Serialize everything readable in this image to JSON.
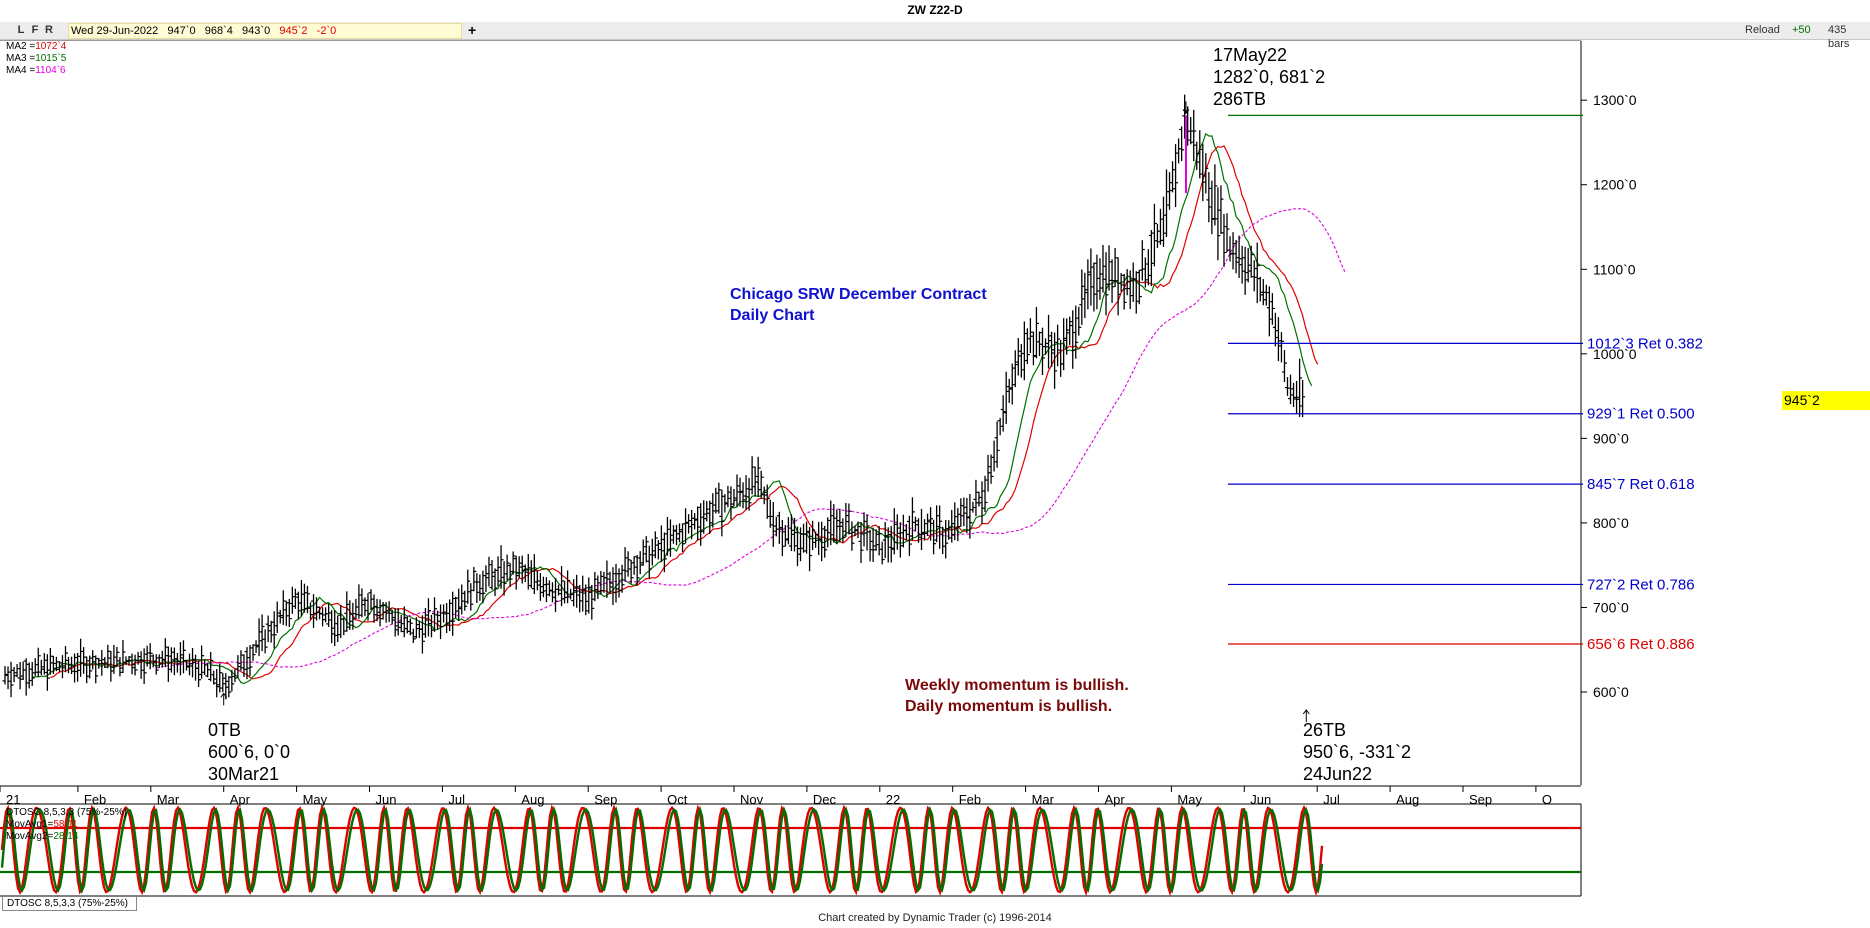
{
  "window_title": "ZW Z22-D",
  "toolbar": {
    "buttons": [
      "L",
      "F",
      "R"
    ],
    "info": {
      "date": "Wed 29-Jun-2022",
      "open": "947`0",
      "high": "968`4",
      "low": "943`0",
      "close": "945`2",
      "change": "-2`0"
    },
    "add_label": "+",
    "reload_label": "Reload",
    "plus_count": "+50",
    "bars_label": "435 bars"
  },
  "ma_legend": [
    {
      "label": "MA2 =",
      "value": "1072`4",
      "color": "#e00000"
    },
    {
      "label": "MA3 =",
      "value": "1015`5",
      "color": "#007000"
    },
    {
      "label": "MA4 =",
      "value": "1104`6",
      "color": "#e000e0"
    }
  ],
  "chart_data": [
    {
      "type": "bar",
      "subtype": "ohlc",
      "title": "Chicago SRW December Contract\nDaily Chart",
      "title_lines": [
        "Chicago SRW December Contract",
        "Daily Chart"
      ],
      "x_labels": [
        "21",
        "Feb",
        "Mar",
        "Apr",
        "May",
        "Jun",
        "Jul",
        "Aug",
        "Sep",
        "Oct",
        "Nov",
        "Dec",
        "22",
        "Feb",
        "Mar",
        "Apr",
        "May",
        "Jun",
        "Jul",
        "Aug",
        "Sep",
        "O"
      ],
      "y_ticks": [
        "600`0",
        "700`0",
        "800`0",
        "900`0",
        "1000`0",
        "1100`0",
        "1200`0",
        "1300`0"
      ],
      "y_values": [
        600,
        700,
        800,
        900,
        1000,
        1100,
        1200,
        1300
      ],
      "ylim": [
        490,
        1370
      ],
      "last_price": {
        "label": "945`2",
        "value": 945.25,
        "color": "#ffff00"
      },
      "trend_points": [
        {
          "month_pos": 0.0,
          "price": 620
        },
        {
          "month_pos": 0.6,
          "price": 630
        },
        {
          "month_pos": 1.3,
          "price": 635
        },
        {
          "month_pos": 2.2,
          "price": 640
        },
        {
          "month_pos": 2.8,
          "price": 625
        },
        {
          "month_pos": 3.0,
          "price": 605
        },
        {
          "month_pos": 3.5,
          "price": 660
        },
        {
          "month_pos": 4.0,
          "price": 710
        },
        {
          "month_pos": 4.6,
          "price": 680
        },
        {
          "month_pos": 5.0,
          "price": 710
        },
        {
          "month_pos": 5.6,
          "price": 670
        },
        {
          "month_pos": 6.0,
          "price": 690
        },
        {
          "month_pos": 6.5,
          "price": 730
        },
        {
          "month_pos": 7.0,
          "price": 745
        },
        {
          "month_pos": 7.6,
          "price": 720
        },
        {
          "month_pos": 8.0,
          "price": 710
        },
        {
          "month_pos": 8.6,
          "price": 750
        },
        {
          "month_pos": 9.0,
          "price": 770
        },
        {
          "month_pos": 9.6,
          "price": 810
        },
        {
          "month_pos": 10.0,
          "price": 830
        },
        {
          "month_pos": 10.3,
          "price": 850
        },
        {
          "month_pos": 10.6,
          "price": 795
        },
        {
          "month_pos": 11.0,
          "price": 775
        },
        {
          "month_pos": 11.5,
          "price": 800
        },
        {
          "month_pos": 12.0,
          "price": 770
        },
        {
          "month_pos": 12.5,
          "price": 800
        },
        {
          "month_pos": 12.9,
          "price": 785
        },
        {
          "month_pos": 13.4,
          "price": 830
        },
        {
          "month_pos": 13.7,
          "price": 930
        },
        {
          "month_pos": 14.0,
          "price": 1020
        },
        {
          "month_pos": 14.5,
          "price": 1000
        },
        {
          "month_pos": 15.0,
          "price": 1100
        },
        {
          "month_pos": 15.5,
          "price": 1080
        },
        {
          "month_pos": 15.9,
          "price": 1150
        },
        {
          "month_pos": 16.2,
          "price": 1282
        },
        {
          "month_pos": 16.5,
          "price": 1200
        },
        {
          "month_pos": 16.8,
          "price": 1130
        },
        {
          "month_pos": 17.1,
          "price": 1100
        },
        {
          "month_pos": 17.4,
          "price": 1050
        },
        {
          "month_pos": 17.6,
          "price": 960
        },
        {
          "month_pos": 17.8,
          "price": 945
        }
      ],
      "series": [
        {
          "name": "MA2",
          "color": "#e00000"
        },
        {
          "name": "MA3",
          "color": "#007000"
        },
        {
          "name": "MA4",
          "color": "#e000e0",
          "dashed": true
        }
      ],
      "retracements": [
        {
          "label": "1012`3 Ret 0.382",
          "value": 1012.375,
          "color": "#0000cc"
        },
        {
          "label": "929`1 Ret 0.500",
          "value": 929.125,
          "color": "#0000cc"
        },
        {
          "label": "845`7 Ret 0.618",
          "value": 845.875,
          "color": "#0000cc"
        },
        {
          "label": "727`2 Ret 0.786",
          "value": 727.25,
          "color": "#0000cc"
        },
        {
          "label": "656`6 Ret 0.886",
          "value": 656.75,
          "color": "#e00000"
        }
      ],
      "high_line": {
        "value": 1282,
        "color": "#007000"
      },
      "annotations": {
        "high": {
          "lines": [
            "17May22",
            "1282`0, 681`2",
            "286TB"
          ],
          "month_pos": 16.2,
          "price": 1282
        },
        "low_start": {
          "lines": [
            "0TB",
            "600`6, 0`0",
            "30Mar21"
          ],
          "month_pos": 3.0,
          "price": 600.75
        },
        "low_end": {
          "lines": [
            "26TB",
            "950`6, -331`2",
            "24Jun22"
          ],
          "month_pos": 17.85,
          "price": 950.75
        }
      },
      "momentum_note": [
        "Weekly momentum is bullish.",
        "Daily momentum is bullish."
      ]
    },
    {
      "type": "line",
      "name": "DTOSC 8,5,3,3 (75%-25%)",
      "ylim": [
        0,
        100
      ],
      "levels": [
        75,
        25
      ],
      "series": [
        {
          "name": "MovAvg1",
          "value": "58.11",
          "color": "#e00000"
        },
        {
          "name": "MovAvg2",
          "value": "28.14",
          "color": "#007000"
        }
      ]
    }
  ],
  "osc_tab_label": "DTOSC 8,5,3,3 (75%-25%)",
  "footer": "Chart created by Dynamic Trader  (c)  1996-2014"
}
